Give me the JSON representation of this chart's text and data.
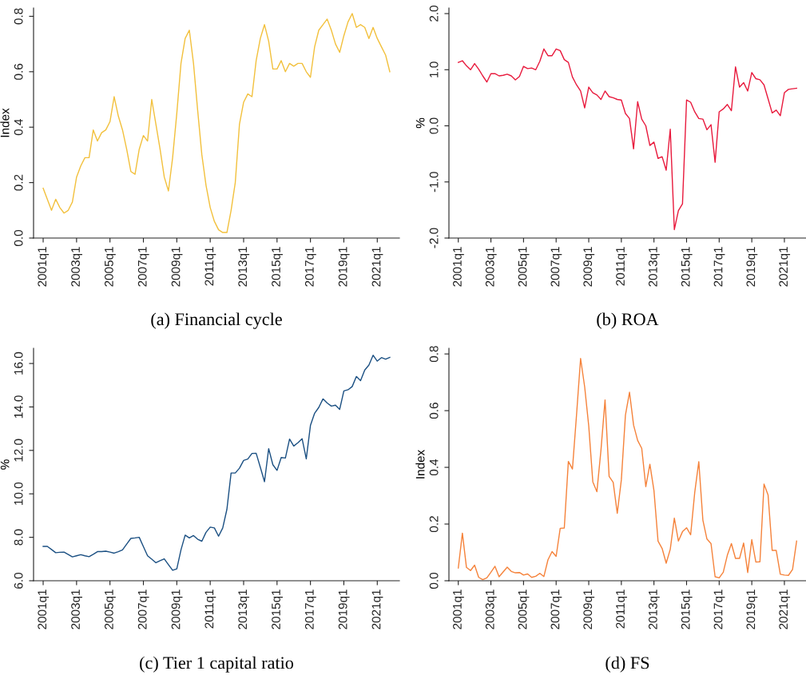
{
  "chart_data": [
    {
      "type": "line",
      "title": "(a) Financial cycle",
      "ylabel": "Index",
      "categories": [
        "2001q1",
        null,
        null,
        null,
        null,
        null,
        null,
        null,
        "2003q1",
        null,
        null,
        null,
        null,
        null,
        null,
        null,
        "2005q1",
        null,
        null,
        null,
        null,
        null,
        null,
        null,
        "2007q1",
        null,
        null,
        null,
        null,
        null,
        null,
        null,
        "2009q1",
        null,
        null,
        null,
        null,
        null,
        null,
        null,
        "2011q1",
        null,
        null,
        null,
        null,
        null,
        null,
        null,
        "2013q1",
        null,
        null,
        null,
        null,
        null,
        null,
        null,
        "2015q1",
        null,
        null,
        null,
        null,
        null,
        null,
        null,
        "2017q1",
        null,
        null,
        null,
        null,
        null,
        null,
        null,
        "2019q1",
        null,
        null,
        null,
        null,
        null,
        null,
        null,
        "2021q1",
        null,
        null,
        null
      ],
      "series": [
        {
          "color": "#f2c03c",
          "values": [
            0.18,
            0.14,
            0.1,
            0.14,
            0.11,
            0.09,
            0.1,
            0.13,
            0.22,
            0.26,
            0.29,
            0.29,
            0.39,
            0.35,
            0.38,
            0.39,
            0.42,
            0.51,
            0.44,
            0.39,
            0.32,
            0.24,
            0.23,
            0.32,
            0.37,
            0.35,
            0.5,
            0.41,
            0.32,
            0.22,
            0.17,
            0.29,
            0.45,
            0.63,
            0.72,
            0.75,
            0.63,
            0.46,
            0.3,
            0.19,
            0.11,
            0.06,
            0.03,
            0.02,
            0.02,
            0.1,
            0.2,
            0.41,
            0.49,
            0.52,
            0.51,
            0.64,
            0.72,
            0.77,
            0.71,
            0.61,
            0.61,
            0.64,
            0.6,
            0.63,
            0.62,
            0.63,
            0.63,
            0.6,
            0.58,
            0.69,
            0.75,
            0.77,
            0.79,
            0.75,
            0.7,
            0.67,
            0.73,
            0.78,
            0.81,
            0.76,
            0.77,
            0.76,
            0.72,
            0.76,
            0.72,
            0.69,
            0.66,
            0.6
          ]
        }
      ],
      "ylim": [
        0,
        0.83
      ],
      "yticks": [
        {
          "value": 0,
          "label": "0.0"
        },
        {
          "value": 0.2,
          "label": "0.2"
        },
        {
          "value": 0.4,
          "label": "0.4"
        },
        {
          "value": 0.6,
          "label": "0.6"
        },
        {
          "value": 0.8,
          "label": "0.8"
        }
      ]
    },
    {
      "type": "line",
      "title": "(b) ROA",
      "ylabel": "%",
      "categories": [
        "2001q1",
        null,
        null,
        null,
        null,
        null,
        null,
        null,
        "2003q1",
        null,
        null,
        null,
        null,
        null,
        null,
        null,
        "2005q1",
        null,
        null,
        null,
        null,
        null,
        null,
        null,
        "2007q1",
        null,
        null,
        null,
        null,
        null,
        null,
        null,
        "2009q1",
        null,
        null,
        null,
        null,
        null,
        null,
        null,
        "2011q1",
        null,
        null,
        null,
        null,
        null,
        null,
        null,
        "2013q1",
        null,
        null,
        null,
        null,
        null,
        null,
        null,
        "2015q1",
        null,
        null,
        null,
        null,
        null,
        null,
        null,
        "2017q1",
        null,
        null,
        null,
        null,
        null,
        null,
        null,
        "2019q1",
        null,
        null,
        null,
        null,
        null,
        null,
        null,
        "2021q1",
        null,
        null,
        null
      ],
      "series": [
        {
          "color": "#e8193c",
          "values": [
            1.13,
            1.16,
            1.07,
            1.0,
            1.11,
            1.01,
            0.89,
            0.78,
            0.93,
            0.93,
            0.89,
            0.9,
            0.92,
            0.89,
            0.82,
            0.88,
            1.06,
            1.02,
            1.03,
            1.0,
            1.15,
            1.37,
            1.25,
            1.25,
            1.37,
            1.34,
            1.18,
            1.13,
            0.87,
            0.73,
            0.62,
            0.32,
            0.69,
            0.59,
            0.55,
            0.47,
            0.62,
            0.52,
            0.5,
            0.47,
            0.46,
            0.22,
            0.13,
            -0.41,
            0.43,
            0.12,
            0.0,
            -0.35,
            -0.29,
            -0.58,
            -0.55,
            -0.79,
            -0.06,
            -1.85,
            -1.51,
            -1.39,
            0.46,
            0.42,
            0.25,
            0.13,
            0.12,
            -0.07,
            0.02,
            -0.65,
            0.25,
            0.3,
            0.38,
            0.27,
            1.05,
            0.69,
            0.77,
            0.62,
            0.95,
            0.84,
            0.82,
            0.73,
            0.48,
            0.23,
            0.28,
            0.18,
            0.59,
            0.65,
            0.66,
            0.67
          ]
        }
      ],
      "ylim": [
        -2.0,
        2.1
      ],
      "yticks": [
        {
          "value": -2,
          "label": "-2.0"
        },
        {
          "value": -1,
          "label": "-1.0"
        },
        {
          "value": 0,
          "label": "0.0"
        },
        {
          "value": 1,
          "label": "1.0"
        },
        {
          "value": 2,
          "label": "2.0"
        }
      ]
    },
    {
      "type": "line",
      "title": "(c) Tier 1 capital ratio",
      "ylabel": "%",
      "categories": [
        "2001q1",
        null,
        null,
        null,
        null,
        null,
        null,
        null,
        "2003q1",
        null,
        null,
        null,
        null,
        null,
        null,
        null,
        "2005q1",
        null,
        null,
        null,
        null,
        null,
        null,
        null,
        "2007q1",
        null,
        null,
        null,
        null,
        null,
        null,
        null,
        "2009q1",
        null,
        null,
        null,
        null,
        null,
        null,
        null,
        "2011q1",
        null,
        null,
        null,
        null,
        null,
        null,
        null,
        "2013q1",
        null,
        null,
        null,
        null,
        null,
        null,
        null,
        "2015q1",
        null,
        null,
        null,
        null,
        null,
        null,
        null,
        "2017q1",
        null,
        null,
        null,
        null,
        null,
        null,
        null,
        "2019q1",
        null,
        null,
        null,
        null,
        null,
        null,
        null,
        "2021q1",
        null,
        null,
        null
      ],
      "series": [
        {
          "color": "#1a4f82",
          "values": [
            7.58,
            7.58,
            7.44,
            7.29,
            7.31,
            7.32,
            7.21,
            7.1,
            7.15,
            7.2,
            7.15,
            7.11,
            7.22,
            7.34,
            7.34,
            7.36,
            7.32,
            7.27,
            7.34,
            7.42,
            7.69,
            7.95,
            7.97,
            8.0,
            7.57,
            7.15,
            6.99,
            6.83,
            6.92,
            7.01,
            6.74,
            6.48,
            6.55,
            7.42,
            8.1,
            7.97,
            8.08,
            7.91,
            7.82,
            8.23,
            8.47,
            8.43,
            8.05,
            8.43,
            9.29,
            10.96,
            10.96,
            11.18,
            11.54,
            11.6,
            11.86,
            11.87,
            11.22,
            10.56,
            12.08,
            11.34,
            11.08,
            11.67,
            11.65,
            12.52,
            12.2,
            12.35,
            12.54,
            11.61,
            13.15,
            13.71,
            13.98,
            14.37,
            14.18,
            14.04,
            14.08,
            13.89,
            14.74,
            14.79,
            14.94,
            15.4,
            15.21,
            15.7,
            15.93,
            16.38,
            16.11,
            16.27,
            16.2,
            16.28
          ]
        }
      ],
      "ylim": [
        6.0,
        16.7
      ],
      "yticks": [
        {
          "value": 6,
          "label": "6.0"
        },
        {
          "value": 8,
          "label": "8.0"
        },
        {
          "value": 10,
          "label": "10.0"
        },
        {
          "value": 12,
          "label": "12.0"
        },
        {
          "value": 14,
          "label": "14.0"
        },
        {
          "value": 16,
          "label": "16.0"
        }
      ]
    },
    {
      "type": "line",
      "title": "(d) FS",
      "ylabel": "Index",
      "categories": [
        "2001q1",
        null,
        null,
        null,
        null,
        null,
        null,
        null,
        "2003q1",
        null,
        null,
        null,
        null,
        null,
        null,
        null,
        "2005q1",
        null,
        null,
        null,
        null,
        null,
        null,
        null,
        "2007q1",
        null,
        null,
        null,
        null,
        null,
        null,
        null,
        "2009q1",
        null,
        null,
        null,
        null,
        null,
        null,
        null,
        "2011q1",
        null,
        null,
        null,
        null,
        null,
        null,
        null,
        "2013q1",
        null,
        null,
        null,
        null,
        null,
        null,
        null,
        "2015q1",
        null,
        null,
        null,
        null,
        null,
        null,
        null,
        "2017q1",
        null,
        null,
        null,
        null,
        null,
        null,
        null,
        "2019q1",
        null,
        null,
        null,
        null,
        null,
        null,
        null,
        "2021q1",
        null,
        null,
        null
      ],
      "series": [
        {
          "color": "#f5823a",
          "values": [
            0.045,
            0.168,
            0.047,
            0.036,
            0.055,
            0.012,
            0.004,
            0.01,
            0.03,
            0.051,
            0.014,
            0.031,
            0.048,
            0.033,
            0.028,
            0.029,
            0.02,
            0.024,
            0.012,
            0.016,
            0.026,
            0.015,
            0.074,
            0.103,
            0.086,
            0.185,
            0.186,
            0.421,
            0.394,
            0.584,
            0.784,
            0.684,
            0.546,
            0.349,
            0.314,
            0.461,
            0.638,
            0.368,
            0.347,
            0.238,
            0.356,
            0.584,
            0.665,
            0.549,
            0.495,
            0.467,
            0.332,
            0.411,
            0.318,
            0.14,
            0.114,
            0.062,
            0.111,
            0.221,
            0.14,
            0.173,
            0.187,
            0.162,
            0.311,
            0.42,
            0.214,
            0.147,
            0.131,
            0.014,
            0.01,
            0.03,
            0.09,
            0.131,
            0.079,
            0.079,
            0.133,
            0.029,
            0.145,
            0.066,
            0.067,
            0.341,
            0.302,
            0.107,
            0.107,
            0.023,
            0.02,
            0.019,
            0.04,
            0.14
          ]
        }
      ],
      "ylim": [
        0,
        0.82
      ],
      "yticks": [
        {
          "value": 0,
          "label": "0.0"
        },
        {
          "value": 0.2,
          "label": "0.2"
        },
        {
          "value": 0.4,
          "label": "0.4"
        },
        {
          "value": 0.6,
          "label": "0.6"
        },
        {
          "value": 0.8,
          "label": "0.8"
        }
      ]
    }
  ]
}
